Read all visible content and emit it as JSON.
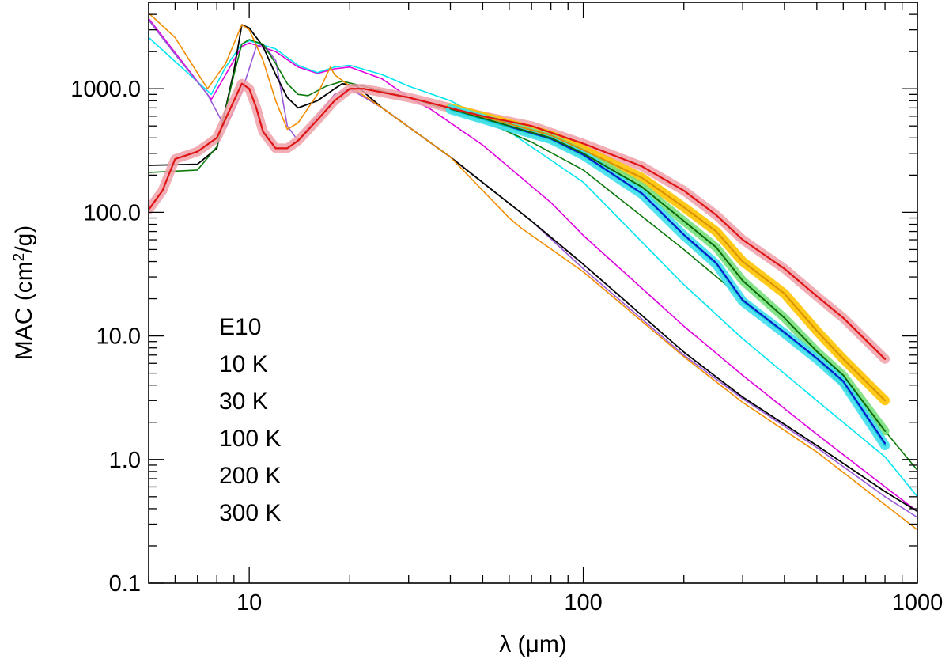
{
  "chart_data": {
    "type": "line",
    "xscale": "log",
    "yscale": "log",
    "xlim": [
      5,
      1000
    ],
    "ylim": [
      0.1,
      5000
    ],
    "xticks": [
      {
        "value": 10,
        "label": "10"
      },
      {
        "value": 100,
        "label": "100"
      },
      {
        "value": 1000,
        "label": "1000"
      }
    ],
    "yticks": [
      {
        "value": 0.1,
        "label": "0.1"
      },
      {
        "value": 1,
        "label": "1.0"
      },
      {
        "value": 10,
        "label": "10.0"
      },
      {
        "value": 100,
        "label": "100.0"
      },
      {
        "value": 1000,
        "label": "1000.0"
      }
    ],
    "xlabel": "λ (μm)",
    "ylabel": {
      "main": "MAC (cm",
      "sup": "2",
      "tail": "/g)"
    },
    "legend": {
      "placement": "lower-left",
      "entries": [
        {
          "label": "E10",
          "color": "#000000"
        },
        {
          "label": "10 K",
          "color": "#0a14c8"
        },
        {
          "label": "30 K",
          "color": "#00e5f0"
        },
        {
          "label": "100 K",
          "color": "#0a7a0a"
        },
        {
          "label": "200 K",
          "color": "#f28c00"
        },
        {
          "label": "300 K",
          "color": "#e01414"
        }
      ]
    },
    "series": [
      {
        "name": "model-magenta",
        "color": "#e000e0",
        "width": 1.6,
        "points": [
          [
            5,
            3700
          ],
          [
            7.7,
            820
          ],
          [
            8.5,
            1300
          ],
          [
            9.5,
            2200
          ],
          [
            10,
            2350
          ],
          [
            12,
            2000
          ],
          [
            14,
            1500
          ],
          [
            16,
            1330
          ],
          [
            18,
            1450
          ],
          [
            20,
            1500
          ],
          [
            25,
            1200
          ],
          [
            30,
            850
          ],
          [
            35,
            680
          ],
          [
            50,
            350
          ],
          [
            80,
            120
          ],
          [
            100,
            65
          ],
          [
            200,
            12
          ],
          [
            300,
            4.8
          ],
          [
            500,
            1.6
          ],
          [
            800,
            0.6
          ],
          [
            1000,
            0.38
          ]
        ]
      },
      {
        "name": "model-cyan",
        "color": "#00e5f0",
        "width": 1.6,
        "points": [
          [
            5,
            2600
          ],
          [
            7.7,
            900
          ],
          [
            8.5,
            1500
          ],
          [
            9.5,
            2300
          ],
          [
            10,
            2450
          ],
          [
            12,
            2100
          ],
          [
            14,
            1550
          ],
          [
            16,
            1350
          ],
          [
            18,
            1500
          ],
          [
            20,
            1550
          ],
          [
            25,
            1300
          ],
          [
            30,
            1050
          ],
          [
            40,
            800
          ],
          [
            60,
            450
          ],
          [
            100,
            175
          ],
          [
            200,
            26
          ],
          [
            300,
            9.5
          ],
          [
            500,
            3
          ],
          [
            800,
            1.05
          ],
          [
            1000,
            0.5
          ]
        ]
      },
      {
        "name": "model-purple",
        "color": "#9a5ad6",
        "width": 1.6,
        "points": [
          [
            5,
            3600
          ],
          [
            6,
            1900
          ],
          [
            7.5,
            900
          ],
          [
            8.5,
            480
          ],
          [
            9.5,
            950
          ],
          [
            10.5,
            2200
          ],
          [
            11,
            2300
          ],
          [
            12,
            1700
          ],
          [
            13,
            500
          ],
          [
            14,
            380
          ],
          [
            16,
            600
          ],
          [
            18,
            900
          ],
          [
            20,
            1000
          ],
          [
            25,
            700
          ],
          [
            40,
            280
          ],
          [
            70,
            85
          ],
          [
            100,
            35
          ],
          [
            200,
            7
          ],
          [
            300,
            3.1
          ],
          [
            500,
            1.25
          ],
          [
            800,
            0.5
          ],
          [
            1000,
            0.34
          ]
        ]
      },
      {
        "name": "model-black",
        "color": "#000000",
        "width": 1.8,
        "points": [
          [
            5,
            240
          ],
          [
            7,
            245
          ],
          [
            8,
            330
          ],
          [
            9,
            1400
          ],
          [
            9.5,
            3300
          ],
          [
            10,
            3100
          ],
          [
            11,
            2200
          ],
          [
            12,
            1300
          ],
          [
            13,
            850
          ],
          [
            14,
            700
          ],
          [
            16,
            800
          ],
          [
            18,
            1000
          ],
          [
            19,
            1100
          ],
          [
            21,
            1050
          ],
          [
            25,
            700
          ],
          [
            40,
            280
          ],
          [
            70,
            85
          ],
          [
            100,
            38
          ],
          [
            200,
            7.4
          ],
          [
            300,
            3.2
          ],
          [
            500,
            1.3
          ],
          [
            800,
            0.55
          ],
          [
            1000,
            0.38
          ]
        ]
      },
      {
        "name": "model-green",
        "color": "#0a7a0a",
        "width": 1.6,
        "points": [
          [
            5,
            210
          ],
          [
            7,
            220
          ],
          [
            8,
            340
          ],
          [
            9,
            1300
          ],
          [
            9.5,
            2300
          ],
          [
            10,
            2500
          ],
          [
            11,
            2300
          ],
          [
            12,
            1600
          ],
          [
            13,
            1100
          ],
          [
            14,
            900
          ],
          [
            15,
            880
          ],
          [
            17,
            1050
          ],
          [
            19,
            1150
          ],
          [
            21,
            1080
          ],
          [
            30,
            850
          ],
          [
            50,
            550
          ],
          [
            70,
            370
          ],
          [
            100,
            220
          ],
          [
            200,
            50
          ],
          [
            300,
            20
          ],
          [
            500,
            6.5
          ],
          [
            800,
            1.7
          ],
          [
            1000,
            0.82
          ]
        ]
      },
      {
        "name": "model-orange",
        "color": "#f28c00",
        "width": 1.6,
        "points": [
          [
            5,
            4100
          ],
          [
            6,
            2600
          ],
          [
            7.5,
            1000
          ],
          [
            8.5,
            1600
          ],
          [
            9.5,
            3300
          ],
          [
            10,
            3000
          ],
          [
            11,
            1700
          ],
          [
            12,
            800
          ],
          [
            13,
            470
          ],
          [
            14,
            530
          ],
          [
            16,
            900
          ],
          [
            17.5,
            1500
          ],
          [
            18,
            1300
          ],
          [
            20,
            1050
          ],
          [
            25,
            700
          ],
          [
            40,
            280
          ],
          [
            60,
            90
          ],
          [
            65,
            75
          ],
          [
            100,
            33
          ],
          [
            200,
            6.8
          ],
          [
            300,
            2.9
          ],
          [
            500,
            1.15
          ],
          [
            800,
            0.43
          ],
          [
            1000,
            0.27
          ]
        ]
      },
      {
        "name": "meas-300K-band",
        "color": "#f0a0a8",
        "width": 12,
        "opacity": 0.85,
        "points": [
          [
            5,
            105
          ],
          [
            5.5,
            150
          ],
          [
            6,
            270
          ],
          [
            6.5,
            290
          ],
          [
            7,
            310
          ],
          [
            8,
            400
          ],
          [
            9,
            800
          ],
          [
            9.5,
            1100
          ],
          [
            10,
            1000
          ],
          [
            10.5,
            700
          ],
          [
            11,
            450
          ],
          [
            12,
            330
          ],
          [
            13,
            330
          ],
          [
            14,
            380
          ],
          [
            16,
            560
          ],
          [
            18,
            800
          ],
          [
            20,
            1000
          ],
          [
            22,
            1000
          ],
          [
            30,
            850
          ],
          [
            50,
            600
          ],
          [
            70,
            500
          ],
          [
            100,
            360
          ],
          [
            150,
            235
          ],
          [
            200,
            150
          ],
          [
            250,
            95
          ],
          [
            300,
            60
          ],
          [
            400,
            35
          ],
          [
            500,
            21
          ],
          [
            600,
            14
          ],
          [
            800,
            6.5
          ]
        ]
      },
      {
        "name": "meas-200K-band",
        "color": "#ffc400",
        "width": 12,
        "opacity": 0.9,
        "points": [
          [
            40,
            700
          ],
          [
            60,
            520
          ],
          [
            80,
            420
          ],
          [
            100,
            320
          ],
          [
            150,
            190
          ],
          [
            200,
            110
          ],
          [
            250,
            70
          ],
          [
            300,
            40
          ],
          [
            400,
            22
          ],
          [
            500,
            11
          ],
          [
            600,
            6.5
          ],
          [
            800,
            3.0
          ]
        ]
      },
      {
        "name": "meas-100K-band",
        "color": "#78e07c",
        "width": 11,
        "opacity": 0.9,
        "points": [
          [
            40,
            690
          ],
          [
            60,
            500
          ],
          [
            80,
            400
          ],
          [
            100,
            300
          ],
          [
            150,
            160
          ],
          [
            200,
            85
          ],
          [
            250,
            52
          ],
          [
            300,
            28
          ],
          [
            400,
            14
          ],
          [
            500,
            7.5
          ],
          [
            600,
            4.8
          ],
          [
            800,
            1.7
          ]
        ]
      },
      {
        "name": "meas-30K-band",
        "color": "#40e0ec",
        "width": 12,
        "opacity": 0.9,
        "points": [
          [
            40,
            680
          ],
          [
            60,
            490
          ],
          [
            80,
            390
          ],
          [
            100,
            290
          ],
          [
            150,
            140
          ],
          [
            200,
            65
          ],
          [
            250,
            38
          ],
          [
            300,
            19
          ],
          [
            400,
            10.5
          ],
          [
            500,
            6.5
          ],
          [
            600,
            4.2
          ],
          [
            800,
            1.3
          ]
        ]
      },
      {
        "name": "meas-30K",
        "color": "#00bcd8",
        "width": 2,
        "points": [
          [
            40,
            680
          ],
          [
            60,
            490
          ],
          [
            80,
            390
          ],
          [
            100,
            290
          ],
          [
            150,
            140
          ],
          [
            200,
            65
          ],
          [
            250,
            38
          ],
          [
            300,
            19
          ],
          [
            400,
            10.5
          ],
          [
            500,
            6.5
          ],
          [
            600,
            4.2
          ],
          [
            800,
            1.3
          ]
        ]
      },
      {
        "name": "meas-10K",
        "color": "#0a14c8",
        "width": 2,
        "points": [
          [
            60,
            495
          ],
          [
            80,
            395
          ],
          [
            100,
            293
          ],
          [
            150,
            142
          ],
          [
            200,
            66
          ],
          [
            250,
            39
          ],
          [
            300,
            19.5
          ],
          [
            400,
            10.7
          ],
          [
            500,
            6.6
          ],
          [
            600,
            4.3
          ],
          [
            800,
            1.35
          ]
        ]
      },
      {
        "name": "meas-100K",
        "color": "#0a6a0a",
        "width": 2,
        "points": [
          [
            40,
            690
          ],
          [
            60,
            500
          ],
          [
            80,
            400
          ],
          [
            100,
            300
          ],
          [
            150,
            160
          ],
          [
            200,
            85
          ],
          [
            250,
            52
          ],
          [
            300,
            28
          ],
          [
            400,
            14
          ],
          [
            500,
            7.5
          ],
          [
            600,
            4.8
          ],
          [
            800,
            1.7
          ]
        ]
      },
      {
        "name": "meas-200K",
        "color": "#d89000",
        "width": 2,
        "points": [
          [
            40,
            700
          ],
          [
            60,
            520
          ],
          [
            80,
            420
          ],
          [
            100,
            320
          ],
          [
            150,
            190
          ],
          [
            200,
            110
          ],
          [
            250,
            70
          ],
          [
            300,
            40
          ],
          [
            400,
            22
          ],
          [
            500,
            11
          ],
          [
            600,
            6.5
          ],
          [
            800,
            3.0
          ]
        ]
      },
      {
        "name": "meas-300K",
        "color": "#e01414",
        "width": 2.2,
        "points": [
          [
            5,
            105
          ],
          [
            5.5,
            150
          ],
          [
            6,
            270
          ],
          [
            6.5,
            290
          ],
          [
            7,
            310
          ],
          [
            8,
            400
          ],
          [
            9,
            800
          ],
          [
            9.5,
            1100
          ],
          [
            10,
            1000
          ],
          [
            10.5,
            700
          ],
          [
            11,
            450
          ],
          [
            12,
            330
          ],
          [
            13,
            330
          ],
          [
            14,
            380
          ],
          [
            16,
            560
          ],
          [
            18,
            800
          ],
          [
            20,
            1000
          ],
          [
            22,
            1000
          ],
          [
            30,
            850
          ],
          [
            50,
            600
          ],
          [
            70,
            500
          ],
          [
            100,
            360
          ],
          [
            150,
            235
          ],
          [
            200,
            150
          ],
          [
            250,
            95
          ],
          [
            300,
            60
          ],
          [
            400,
            35
          ],
          [
            500,
            21
          ],
          [
            600,
            14
          ],
          [
            800,
            6.5
          ]
        ]
      }
    ]
  }
}
